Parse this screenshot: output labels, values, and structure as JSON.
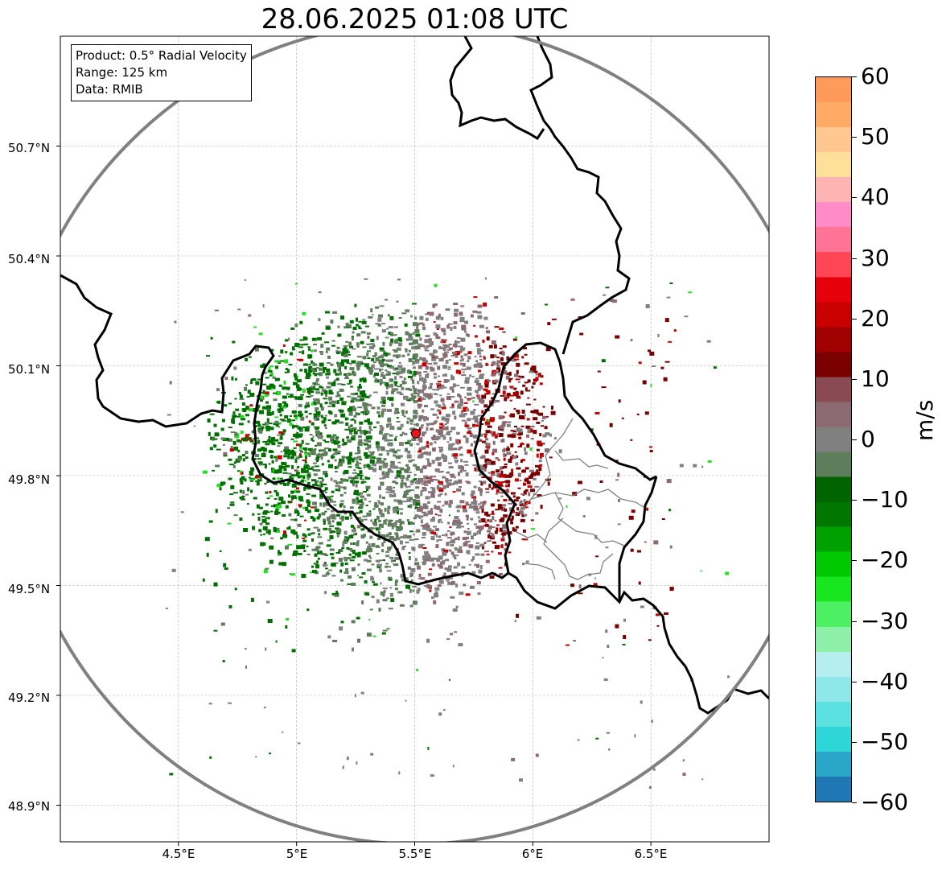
{
  "title": "28.06.2025 01:08 UTC",
  "info_box": {
    "product": "Product: 0.5° Radial Velocity",
    "range": "Range: 125 km",
    "data": "Data: RMIB"
  },
  "map": {
    "lon_range": [
      4.0,
      7.0
    ],
    "lat_range": [
      48.8,
      51.0
    ],
    "lon_ticks": [
      "4.5°E",
      "5°E",
      "5.5°E",
      "6°E",
      "6.5°E"
    ],
    "lon_tick_values": [
      4.5,
      5.0,
      5.5,
      6.0,
      6.5
    ],
    "lat_ticks": [
      "50.7°N",
      "50.4°N",
      "50.1°N",
      "49.8°N",
      "49.5°N",
      "49.2°N",
      "48.9°N"
    ],
    "lat_tick_values": [
      50.7,
      50.4,
      50.1,
      49.8,
      49.5,
      49.2,
      48.9
    ],
    "grid": true,
    "radar_site": {
      "lon": 5.505,
      "lat": 49.915,
      "marker_color": "#e8141e"
    },
    "range_ring_color": "#808080",
    "border_color": "#000000",
    "admin_border_color": "#808080"
  },
  "colorbar": {
    "unit": "m/s",
    "min": -60,
    "max": 60,
    "ticks": [
      "60",
      "50",
      "40",
      "30",
      "20",
      "10",
      "0",
      "−10",
      "−20",
      "−30",
      "−40",
      "−50",
      "−60"
    ],
    "colors": [
      "#1f78b4",
      "#2aa6c8",
      "#2ed6d8",
      "#5de1e0",
      "#8ee8ea",
      "#b6eef0",
      "#8ef0a8",
      "#4cf062",
      "#18e61e",
      "#00c800",
      "#00a000",
      "#007800",
      "#006400",
      "#5e7d5a",
      "#808080",
      "#8c6a72",
      "#8a4a52",
      "#7a0000",
      "#a00000",
      "#c80000",
      "#e6000a",
      "#ff4656",
      "#ff7496",
      "#ff8cc8",
      "#ffb4b4",
      "#ffe09a",
      "#ffc890",
      "#ffaa66",
      "#ff9a5a"
    ]
  },
  "velocity_colors": {
    "strong_away": "#7a0000",
    "away": "#c80000",
    "weak_away": "#8c6a72",
    "near_zero": "#808080",
    "weak_toward": "#5e7d5a",
    "toward": "#007000",
    "strong_toward": "#20e020"
  }
}
